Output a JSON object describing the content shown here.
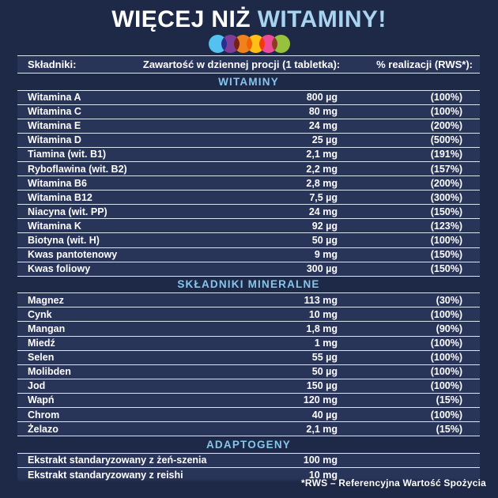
{
  "title": {
    "prefix": "WIĘCEJ NIŻ ",
    "highlight": "WITAMINY!"
  },
  "dots": [
    {
      "name": "dot-blue",
      "color": "#54c2f0"
    },
    {
      "name": "dot-purple",
      "color": "#7c3e98"
    },
    {
      "name": "dot-orange",
      "color": "#f0821e"
    },
    {
      "name": "dot-yellow",
      "color": "#ffc214"
    },
    {
      "name": "dot-pink",
      "color": "#ee4c9b"
    },
    {
      "name": "dot-green",
      "color": "#96c23d"
    }
  ],
  "table": {
    "header": {
      "ingredients": "Składniki:",
      "content": "Zawartość w dziennej procji (1 tabletka):",
      "rws": "% realizacji (RWS*):"
    },
    "sections": [
      {
        "name": "WITAMINY",
        "rows": [
          [
            "Witamina A",
            "800 µg",
            "(100%)"
          ],
          [
            "Witamina C",
            "80 mg",
            "(100%)"
          ],
          [
            "Witamina E",
            "24 mg",
            "(200%)"
          ],
          [
            "Witamina D",
            "25 µg",
            "(500%)"
          ],
          [
            "Tiamina (wit. B1)",
            "2,1 mg",
            "(191%)"
          ],
          [
            "Ryboflawina (wit. B2)",
            "2,2 mg",
            "(157%)"
          ],
          [
            "Witamina B6",
            "2,8 mg",
            "(200%)"
          ],
          [
            "Witamina B12",
            "7,5 µg",
            "(300%)"
          ],
          [
            "Niacyna (wit. PP)",
            "24 mg",
            "(150%)"
          ],
          [
            "Witamina K",
            "92 µg",
            "(123%)"
          ],
          [
            "Biotyna (wit. H)",
            "50 µg",
            "(100%)"
          ],
          [
            "Kwas pantotenowy",
            "9 mg",
            "(150%)"
          ],
          [
            "Kwas foliowy",
            "300 µg",
            "(150%)"
          ]
        ]
      },
      {
        "name": "SKŁADNIKI MINERALNE",
        "rows": [
          [
            "Magnez",
            "113 mg",
            "(30%)"
          ],
          [
            "Cynk",
            "10 mg",
            "(100%)"
          ],
          [
            "Mangan",
            "1,8 mg",
            "(90%)"
          ],
          [
            "Miedź",
            "1 mg",
            "(100%)"
          ],
          [
            "Selen",
            "55 µg",
            "(100%)"
          ],
          [
            "Molibden",
            "50 µg",
            "(100%)"
          ],
          [
            "Jod",
            "150 µg",
            "(100%)"
          ],
          [
            "Wapń",
            "120 mg",
            "(15%)"
          ],
          [
            "Chrom",
            "40 µg",
            "(100%)"
          ],
          [
            "Żelazo",
            "2,1 mg",
            "(15%)"
          ]
        ]
      },
      {
        "name": "ADAPTOGENY",
        "rows": [
          [
            "Ekstrakt standaryzowany z żeń-szenia",
            "100 mg",
            ""
          ],
          [
            "Ekstrakt standaryzowany z reishi",
            "10 mg",
            ""
          ]
        ]
      }
    ]
  },
  "footnote": "*RWS – Referencyjna Wartość Spożycia",
  "colors": {
    "background": "#1e2947",
    "row_background": "#293459",
    "divider": "#dce6f2",
    "title_accent": "#a8d4f1",
    "section_heading": "#86c6eb"
  }
}
